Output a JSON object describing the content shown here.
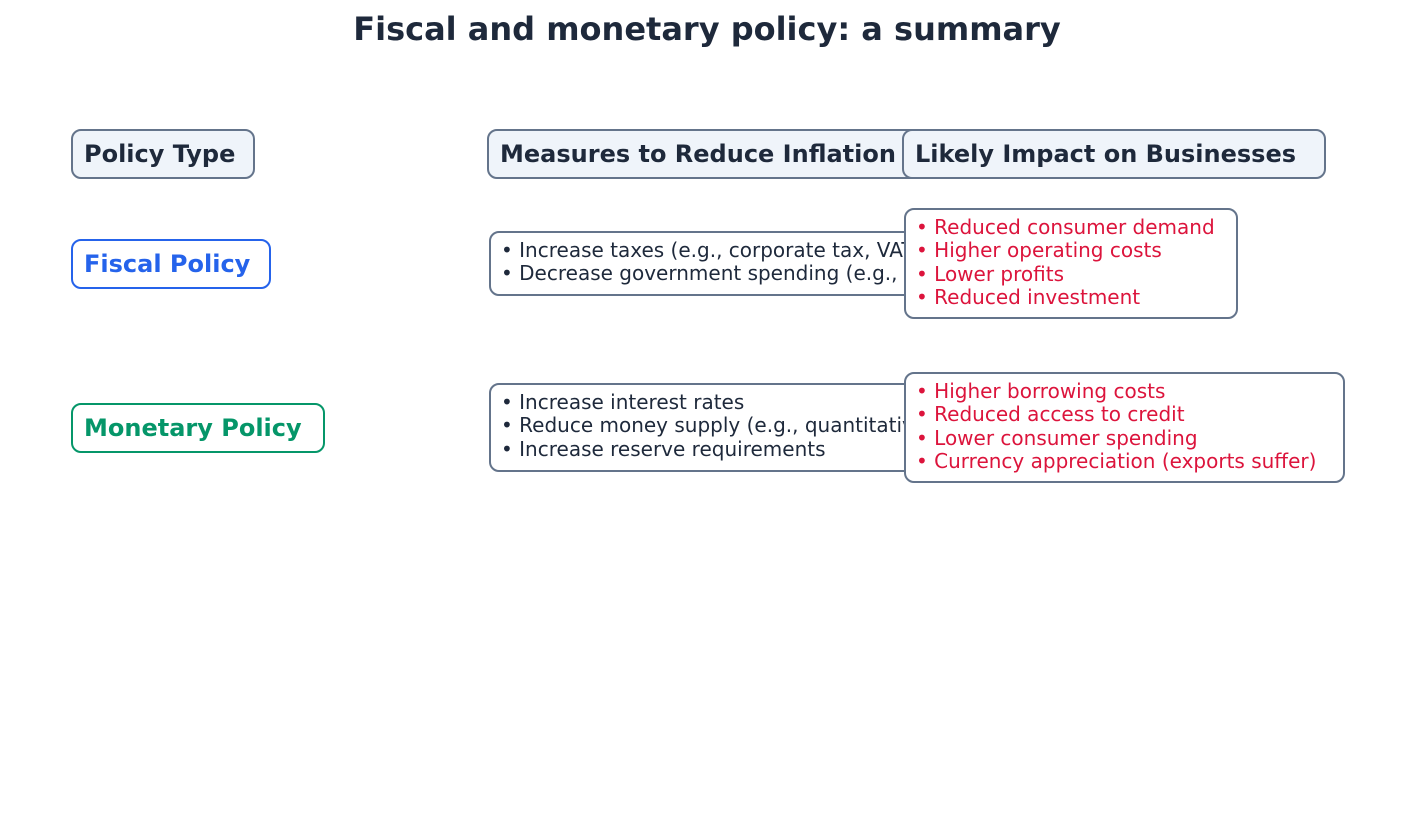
{
  "title": "Fiscal and monetary policy: a summary",
  "colors": {
    "fiscal": "#2563eb",
    "monetary": "#059669",
    "impact_text": "#dc143c",
    "header_fill": "#eff4fa",
    "border": "#64748b",
    "text": "#1e293b"
  },
  "headers": {
    "policy_type": "Policy Type",
    "measures": "Measures to Reduce Inflation",
    "impact": "Likely Impact on Businesses"
  },
  "rows": [
    {
      "policy": "Fiscal Policy",
      "measures": [
        "• Increase taxes (e.g., corporate tax, VAT)",
        "• Decrease government spending (e.g., on infrastructure)"
      ],
      "impacts": [
        "• Reduced consumer demand",
        "• Higher operating costs",
        "• Lower profits",
        "• Reduced investment"
      ]
    },
    {
      "policy": "Monetary Policy",
      "measures": [
        "• Increase interest rates",
        "• Reduce money supply (e.g., quantitative tightening)",
        "• Increase reserve requirements"
      ],
      "impacts": [
        "• Higher borrowing costs",
        "• Reduced access to credit",
        "• Lower consumer spending",
        "• Currency appreciation (exports suffer)"
      ]
    }
  ]
}
